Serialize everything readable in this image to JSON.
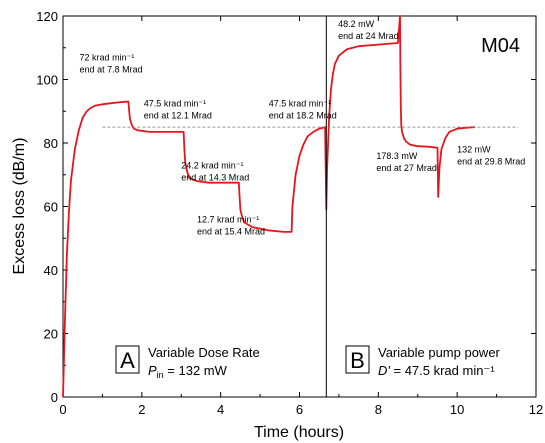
{
  "chart_data": {
    "type": "line",
    "title": "",
    "panel_label": "M04",
    "xlabel": "Time (hours)",
    "ylabel": "Excess loss (dB/m)",
    "xlim": [
      0,
      12
    ],
    "ylim": [
      0,
      120
    ],
    "xticks": [
      0,
      2,
      4,
      6,
      8,
      10,
      12
    ],
    "yticks": [
      0,
      20,
      40,
      60,
      80,
      100,
      120
    ],
    "grid": false,
    "series": [
      {
        "color": "#e8141c",
        "x": [
          0,
          0.05,
          0.1,
          0.15,
          0.2,
          0.3,
          0.4,
          0.5,
          0.6,
          0.7,
          0.8,
          1.0,
          1.2,
          1.4,
          1.6,
          1.66,
          1.68,
          1.7,
          1.75,
          1.8,
          1.9,
          2.2,
          2.6,
          3.0,
          3.06,
          3.08,
          3.1,
          3.15,
          3.2,
          3.4,
          3.7,
          4.0,
          4.4,
          4.46,
          4.48,
          4.5,
          4.55,
          4.6,
          4.8,
          5.2,
          5.6,
          5.8,
          5.82,
          5.9,
          6.0,
          6.1,
          6.2,
          6.35,
          6.5,
          6.65,
          6.68,
          6.7,
          6.75,
          6.8,
          6.85,
          6.9,
          7.0,
          7.2,
          7.5,
          8.0,
          8.5,
          8.55,
          8.56,
          8.57,
          8.58,
          8.6,
          8.65,
          8.7,
          8.8,
          9.0,
          9.3,
          9.5,
          9.52,
          9.55,
          9.6,
          9.7,
          9.8,
          10.0,
          10.2,
          10.45
        ],
        "y": [
          0,
          25,
          45,
          58,
          68,
          78,
          84,
          88,
          90,
          91,
          91.7,
          92.2,
          92.5,
          92.8,
          93,
          93,
          90,
          87.5,
          85.5,
          84.5,
          84,
          83.5,
          83.5,
          83.5,
          83.5,
          78,
          74,
          71,
          69,
          68,
          67.5,
          67.5,
          67.5,
          67.5,
          63,
          59,
          56.5,
          55,
          53.5,
          52.5,
          52,
          52,
          60,
          70,
          76,
          79.5,
          82,
          83.5,
          84.5,
          85,
          59,
          72,
          88,
          97,
          102,
          105,
          107.5,
          109.5,
          110.5,
          111,
          111.5,
          120,
          103,
          92,
          86,
          83.5,
          81.5,
          80.5,
          79.5,
          79,
          78.8,
          78.5,
          63,
          72,
          78,
          81.5,
          83.5,
          84.5,
          84.8,
          85
        ]
      },
      {
        "style": "dashed",
        "color": "#777777",
        "x": [
          1.0,
          11.55
        ],
        "y": [
          85,
          85
        ]
      }
    ],
    "vline_x": 6.68,
    "annotations": [
      {
        "x": 0.42,
        "y": 106,
        "lines": [
          "72 krad min⁻¹",
          "end at 7.8 Mrad"
        ]
      },
      {
        "x": 2.05,
        "y": 91.5,
        "lines": [
          "47.5 krad min⁻¹",
          "end at 12.1 Mrad"
        ]
      },
      {
        "x": 5.22,
        "y": 91.5,
        "lines": [
          "47.5 krad min⁻¹",
          "end at 18.2 Mrad"
        ]
      },
      {
        "x": 3.0,
        "y": 72,
        "lines": [
          "24.2 krad min⁻¹",
          "end at 14.3 Mrad"
        ]
      },
      {
        "x": 3.4,
        "y": 55,
        "lines": [
          "12.7 krad min⁻¹",
          "end at 15.4 Mrad"
        ]
      },
      {
        "x": 6.98,
        "y": 116.5,
        "lines": [
          "48.2 mW",
          "end at 24 Mrad"
        ]
      },
      {
        "x": 7.95,
        "y": 75,
        "lines": [
          "178.3 mW",
          "end at 27 Mrad"
        ]
      },
      {
        "x": 10.0,
        "y": 77,
        "lines": [
          "132 mW",
          "end at 29.8 Mrad"
        ]
      }
    ],
    "panels": [
      {
        "letter": "A",
        "line1": "Variable Dose Rate",
        "line2_sym": "P",
        "line2_sub": "in",
        "line2_rest": " = 132 mW"
      },
      {
        "letter": "B",
        "line1": "Variable pump power",
        "line2_sym": "D'",
        "line2_sub": "",
        "line2_rest": " = 47.5 krad min⁻¹"
      }
    ]
  }
}
